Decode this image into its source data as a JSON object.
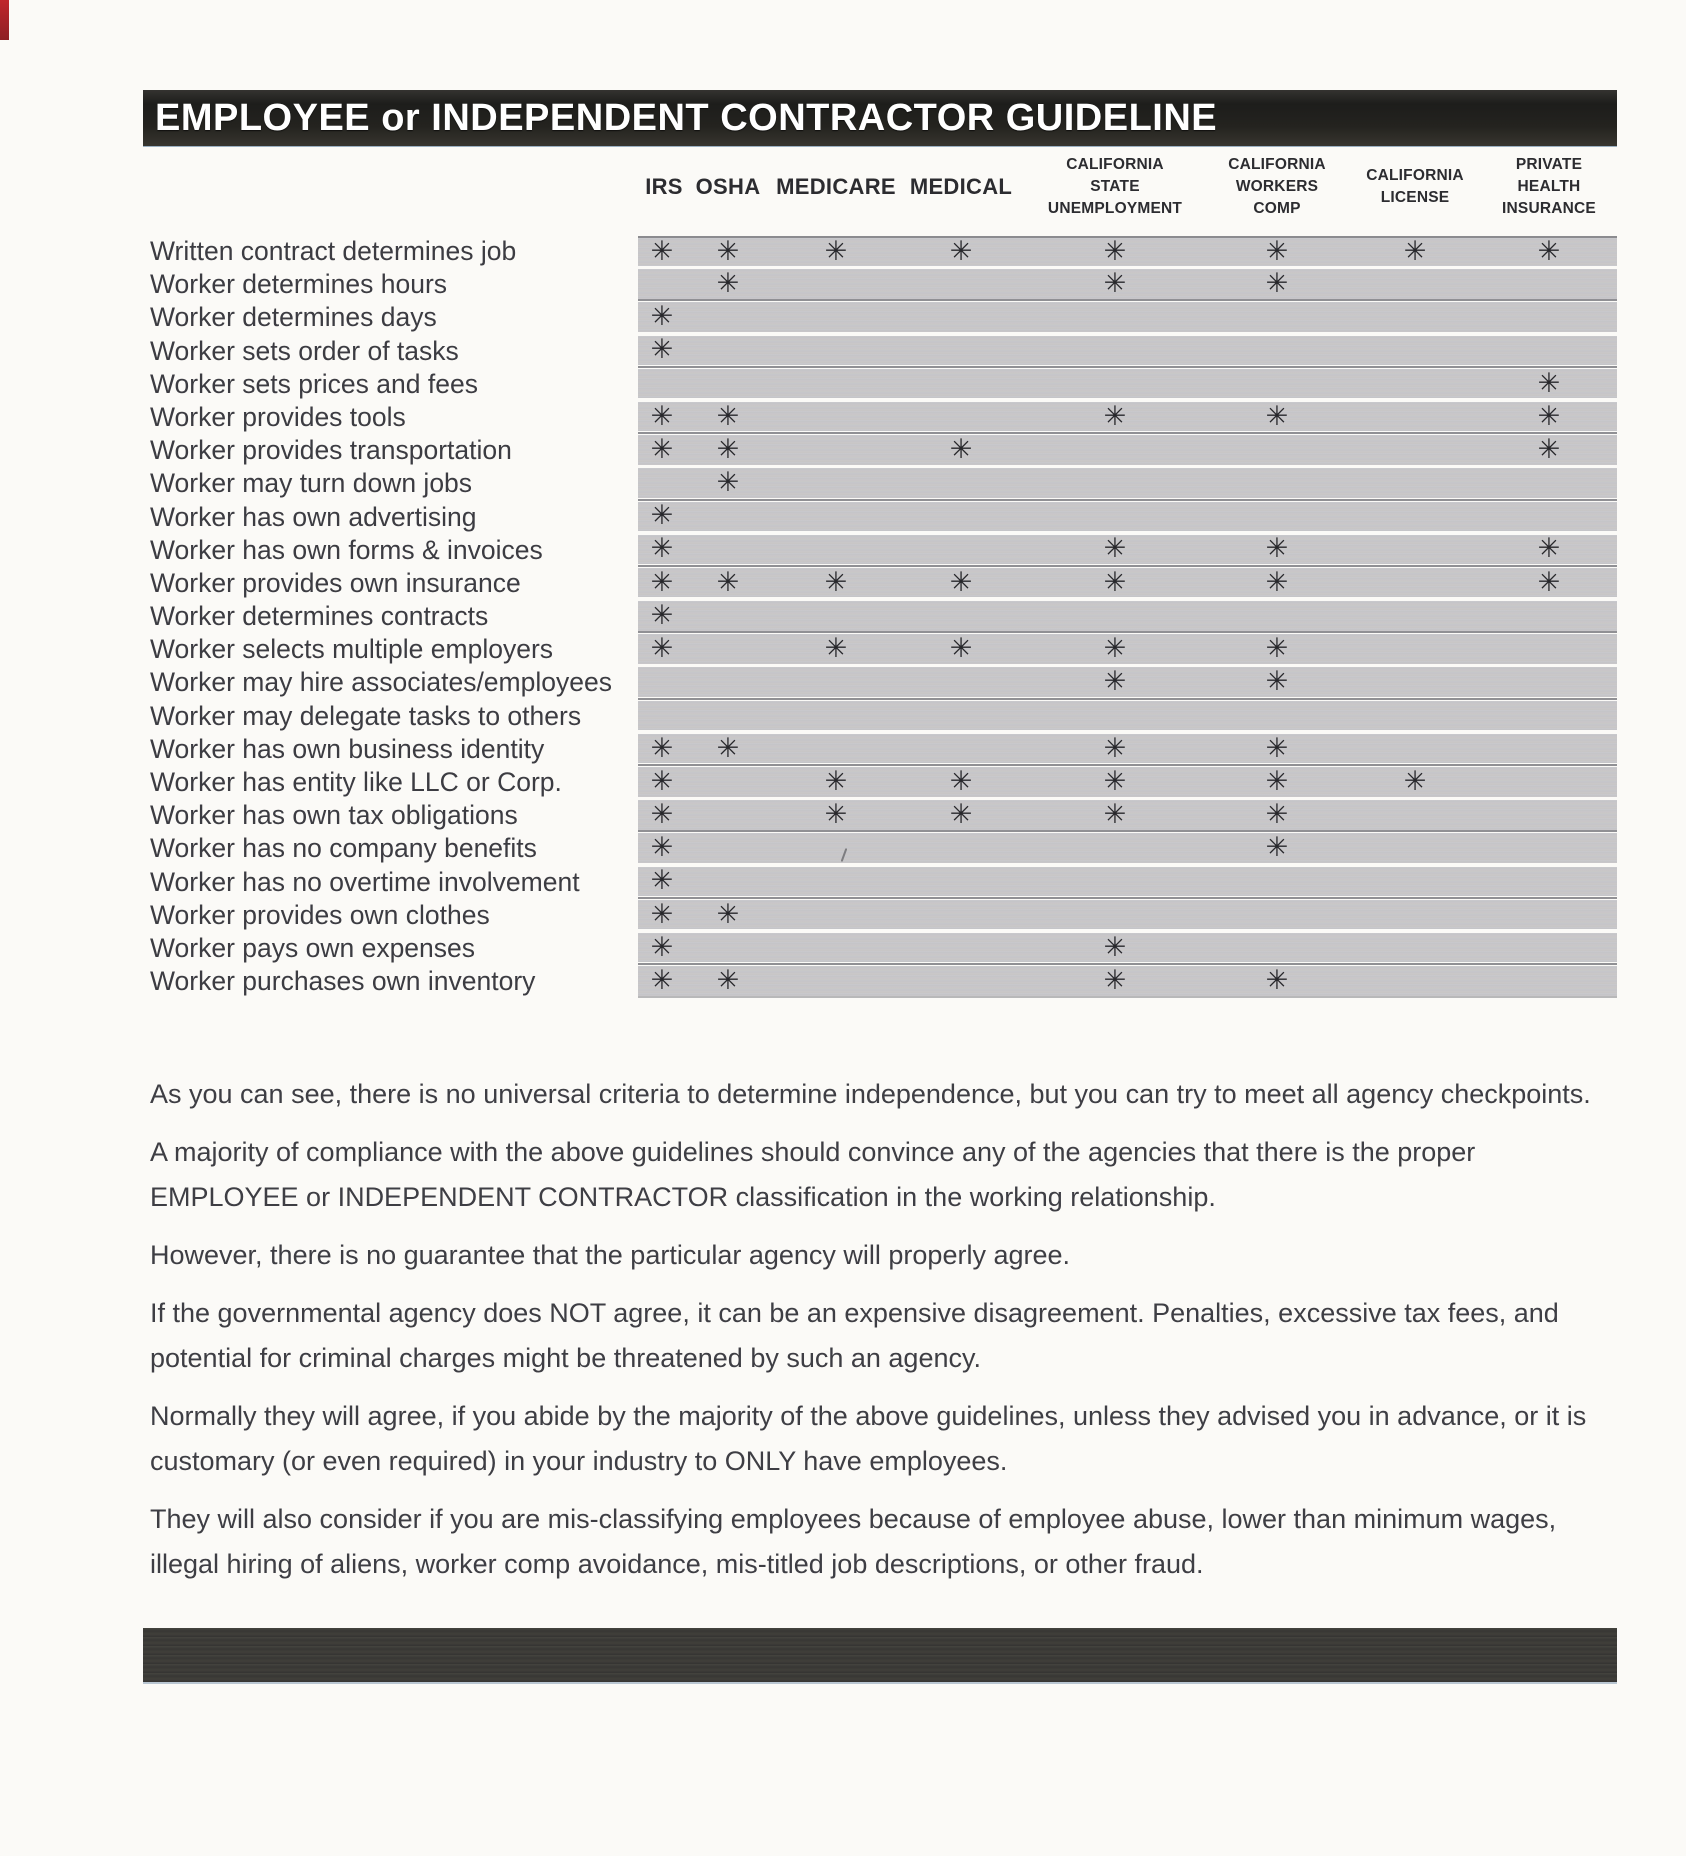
{
  "title": "EMPLOYEE or INDEPENDENT CONTRACTOR GUIDELINE",
  "mark_glyph": "✳",
  "columns": [
    {
      "label": "IRS"
    },
    {
      "label": "OSHA"
    },
    {
      "label": "MEDICARE"
    },
    {
      "label": "MEDICAL"
    },
    {
      "label": "CALIFORNIA\nSTATE\nUNEMPLOYMENT"
    },
    {
      "label": "CALIFORNIA\nWORKERS\nCOMP"
    },
    {
      "label": "CALIFORNIA\nLICENSE"
    },
    {
      "label": "PRIVATE\nHEALTH\nINSURANCE"
    }
  ],
  "rows": [
    {
      "label": "Written contract determines job",
      "marks": [
        1,
        1,
        1,
        1,
        1,
        1,
        1,
        1
      ]
    },
    {
      "label": "Worker determines hours",
      "marks": [
        0,
        1,
        0,
        0,
        1,
        1,
        0,
        0
      ]
    },
    {
      "label": "Worker determines days",
      "marks": [
        1,
        0,
        0,
        0,
        0,
        0,
        0,
        0
      ]
    },
    {
      "label": "Worker sets order of tasks",
      "marks": [
        1,
        0,
        0,
        0,
        0,
        0,
        0,
        0
      ]
    },
    {
      "label": "Worker sets prices and fees",
      "marks": [
        0,
        0,
        0,
        0,
        0,
        0,
        0,
        1
      ]
    },
    {
      "label": "Worker provides tools",
      "marks": [
        1,
        1,
        0,
        0,
        1,
        1,
        0,
        1
      ]
    },
    {
      "label": "Worker provides transportation",
      "marks": [
        1,
        1,
        0,
        1,
        0,
        0,
        0,
        1
      ]
    },
    {
      "label": "Worker may turn down jobs",
      "marks": [
        0,
        1,
        0,
        0,
        0,
        0,
        0,
        0
      ]
    },
    {
      "label": "Worker has own advertising",
      "marks": [
        1,
        0,
        0,
        0,
        0,
        0,
        0,
        0
      ]
    },
    {
      "label": "Worker has own forms & invoices",
      "marks": [
        1,
        0,
        0,
        0,
        1,
        1,
        0,
        1
      ]
    },
    {
      "label": "Worker provides own insurance",
      "marks": [
        1,
        1,
        1,
        1,
        1,
        1,
        0,
        1
      ]
    },
    {
      "label": "Worker determines contracts",
      "marks": [
        1,
        0,
        0,
        0,
        0,
        0,
        0,
        0
      ]
    },
    {
      "label": "Worker selects multiple employers",
      "marks": [
        1,
        0,
        1,
        1,
        1,
        1,
        0,
        0
      ]
    },
    {
      "label": "Worker may hire associates/employees",
      "marks": [
        0,
        0,
        0,
        0,
        1,
        1,
        0,
        0
      ]
    },
    {
      "label": "Worker may delegate tasks to others",
      "marks": [
        0,
        0,
        0,
        0,
        0,
        0,
        0,
        0
      ]
    },
    {
      "label": "Worker has own business identity",
      "marks": [
        1,
        1,
        0,
        0,
        1,
        1,
        0,
        0
      ]
    },
    {
      "label": "Worker has entity like LLC or Corp.",
      "marks": [
        1,
        0,
        1,
        1,
        1,
        1,
        1,
        0
      ]
    },
    {
      "label": "Worker has own tax obligations",
      "marks": [
        1,
        0,
        1,
        1,
        1,
        1,
        0,
        0
      ]
    },
    {
      "label": "Worker has no company benefits",
      "marks": [
        1,
        0,
        0,
        0,
        0,
        1,
        0,
        0
      ]
    },
    {
      "label": "Worker has no overtime involvement",
      "marks": [
        1,
        0,
        0,
        0,
        0,
        0,
        0,
        0
      ]
    },
    {
      "label": "Worker provides own clothes",
      "marks": [
        1,
        1,
        0,
        0,
        0,
        0,
        0,
        0
      ]
    },
    {
      "label": "Worker pays own expenses",
      "marks": [
        1,
        0,
        0,
        0,
        1,
        0,
        0,
        0
      ]
    },
    {
      "label": "Worker purchases own inventory",
      "marks": [
        1,
        1,
        0,
        0,
        1,
        1,
        0,
        0
      ]
    }
  ],
  "paragraphs": [
    "As you can see, there is no universal criteria to determine independence, but you can try to meet all agency checkpoints.",
    "A majority of compliance with the above guidelines should convince any of the agencies that there is the proper EMPLOYEE or INDEPENDENT CONTRACTOR classification in the working relationship.",
    "However, there is no guarantee that the particular agency will properly agree.",
    "If the governmental agency does NOT agree, it can be an expensive disagreement.  Penalties, excessive tax fees, and potential for criminal charges might be threatened by such an agency.",
    "Normally they will agree, if you abide by the majority of the above guidelines, unless they advised you in advance, or it is customary (or even required) in your industry to ONLY have employees.",
    "They will also consider if you are mis-classifying employees because of employee abuse, lower than minimum wages, illegal hiring of aliens, worker comp avoidance, mis-titled job descriptions, or other fraud."
  ],
  "colors": {
    "title_bar": "#1d1d1b",
    "band_grey": "#c8c7cb",
    "bottom_bar": "#3c3b37",
    "artifact_red": "#b0262b"
  }
}
